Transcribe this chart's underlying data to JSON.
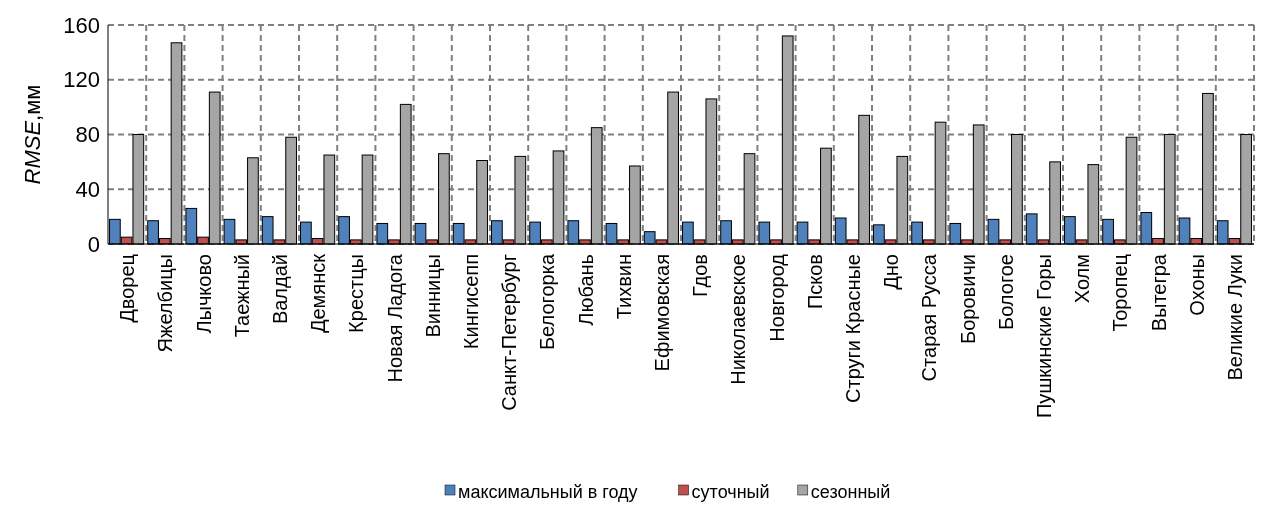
{
  "chart_data": {
    "type": "bar",
    "ylabel": "RMSE,мм",
    "categories": [
      "Дворец",
      "Яжелбицы",
      "Лычково",
      "Таежный",
      "Валдай",
      "Демянск",
      "Крестцы",
      "Новая Ладога",
      "Винницы",
      "Кингисепп",
      "Санкт-Петербург",
      "Белогорка",
      "Любань",
      "Тихвин",
      "Ефимовская",
      "Гдов",
      "Николаевское",
      "Новгород",
      "Псков",
      "Струги Красные",
      "Дно",
      "Старая Русса",
      "Боровичи",
      "Бологое",
      "Пушкинские  Горы",
      "Холм",
      "Торопец",
      "Вытегра",
      "Охоны",
      "Великие Луки"
    ],
    "series": [
      {
        "name": "максимальный в году",
        "color": "#4f81bd",
        "values": [
          18,
          17,
          26,
          18,
          20,
          16,
          20,
          15,
          15,
          15,
          17,
          16,
          17,
          15,
          9,
          16,
          17,
          16,
          16,
          19,
          14,
          16,
          15,
          18,
          22,
          20,
          18,
          23,
          19,
          17
        ]
      },
      {
        "name": "суточный",
        "color": "#c0504d",
        "values": [
          5,
          4,
          5,
          3,
          3,
          4,
          3,
          3,
          3,
          3,
          3,
          3,
          3,
          3,
          3,
          3,
          3,
          3,
          3,
          3,
          3,
          3,
          3,
          3,
          3,
          3,
          3,
          4,
          4,
          4
        ]
      },
      {
        "name": "сезонный",
        "color": "#a5a5a5",
        "values": [
          80,
          147,
          111,
          63,
          78,
          65,
          65,
          102,
          66,
          61,
          64,
          68,
          85,
          57,
          111,
          106,
          66,
          152,
          70,
          94,
          64,
          89,
          87,
          80,
          60,
          58,
          78,
          80,
          110,
          80
        ]
      }
    ],
    "ylim": [
      0,
      160
    ],
    "yticks": [
      0,
      40,
      80,
      120,
      160
    ],
    "grid": true,
    "legend": "bottom"
  }
}
